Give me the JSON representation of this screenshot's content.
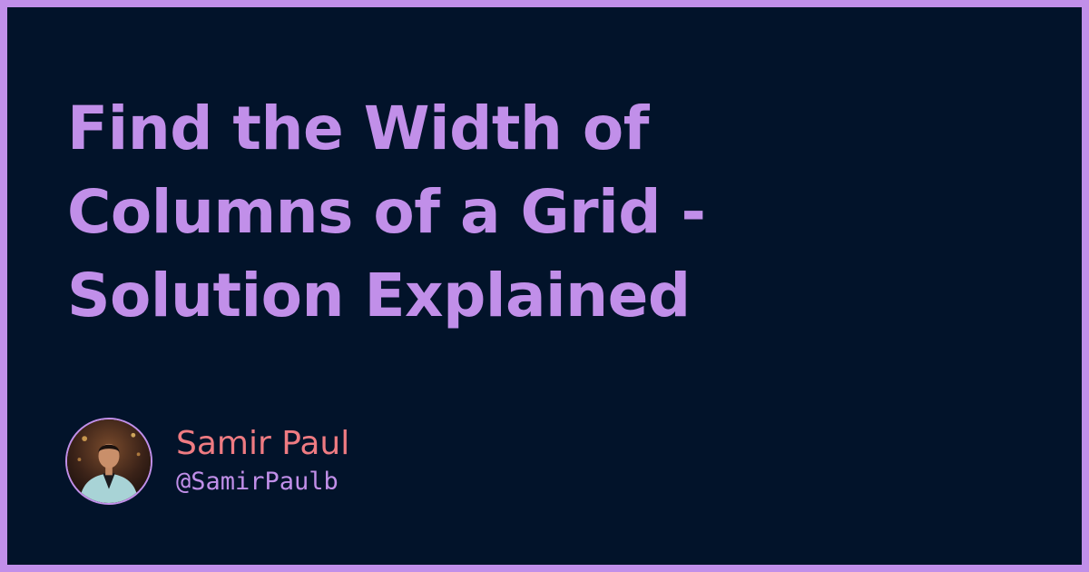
{
  "title": {
    "lines": [
      "Find the Width of",
      "Columns of a Grid -",
      "Solution Explained"
    ]
  },
  "author": {
    "name": "Samir Paul",
    "handle": "@SamirPaulb",
    "avatar_icon": "person-photo-icon"
  },
  "colors": {
    "frame": "#c18fe9",
    "background": "#02132a",
    "title": "#c18fe9",
    "author_name": "#ef7b82",
    "author_handle": "#c18fe9"
  }
}
